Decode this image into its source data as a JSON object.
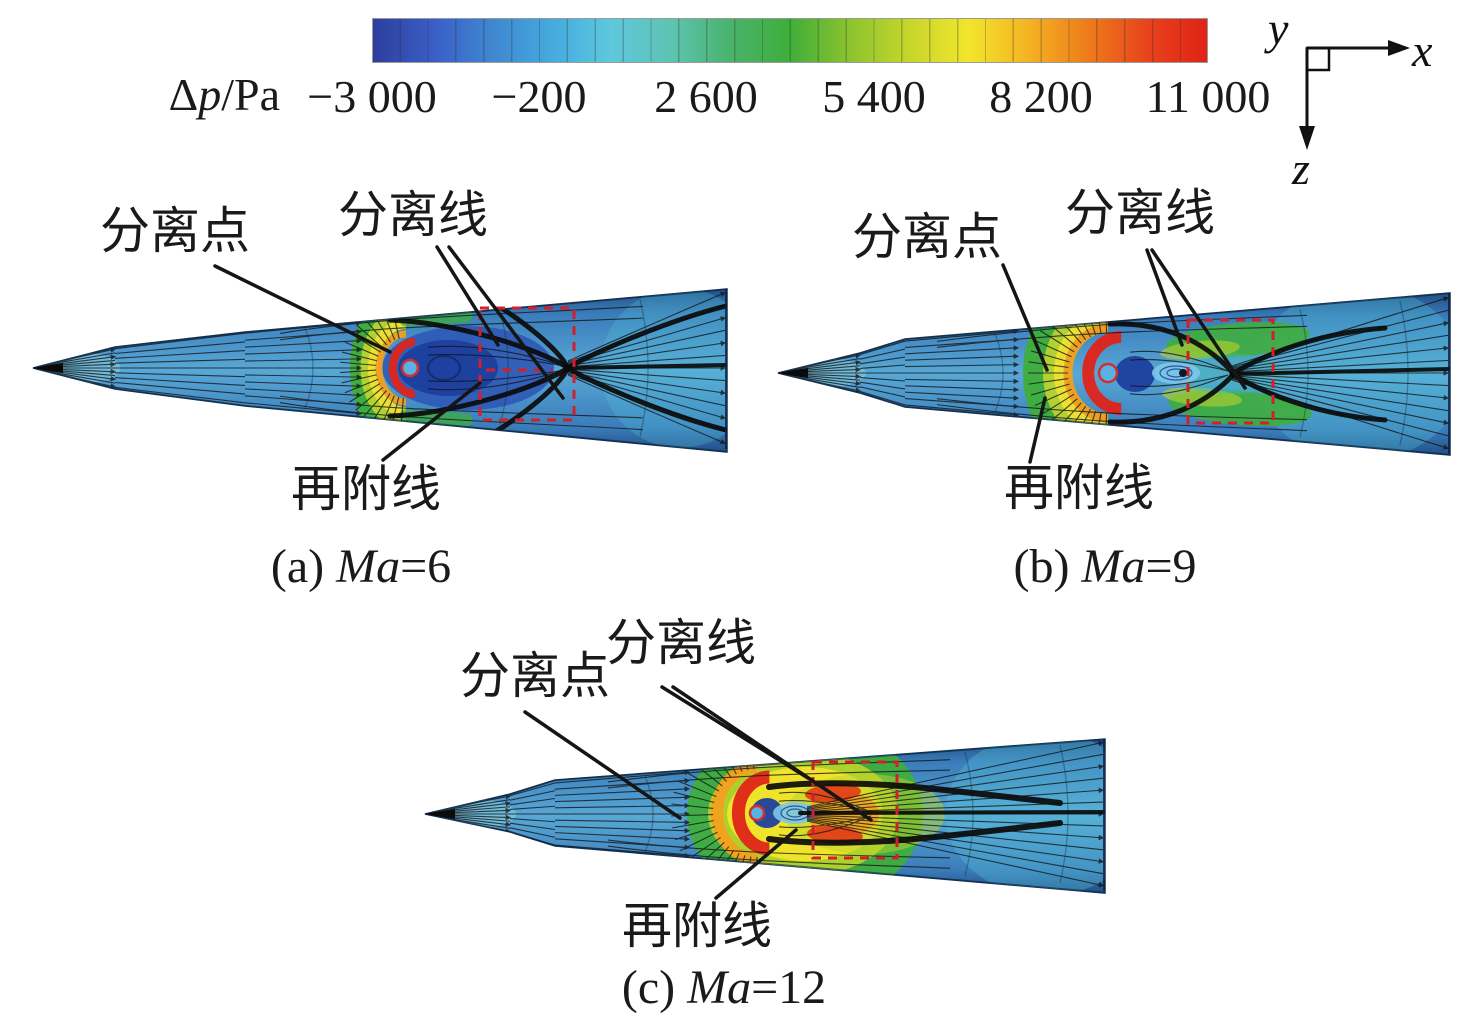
{
  "figure": {
    "palette": {
      "green": "#3fae3a",
      "yellowGreen": "#b9d42a",
      "yellow": "#f2e42c",
      "orange": "#f2a01e",
      "red": "#df2418",
      "redStreak": "#e03a16",
      "wakeNavy": "#1e3f9e",
      "wakeBlue": "#2d55b4",
      "bubbleCyan": "#7cc8e4",
      "teal": "#45b8b8",
      "cyanTint": "#55c4da",
      "noseLight": "#8ed0de",
      "stream": "#141414",
      "thick": "#0b0b0b",
      "dashedBox": "#d0202c",
      "leader": "#151515",
      "edge": "#0d2f55",
      "bodyDark": "#214f86",
      "bodyMid": "#58a8d6"
    },
    "colorbar": {
      "label_delta": "Δ",
      "label_p": "p",
      "label_unit": "/Pa",
      "ticks": [
        "−3 000",
        "−200",
        "2 600",
        "5 400",
        "8 200",
        "11 000"
      ],
      "gradient": [
        "#2d3e9d",
        "#3a5ec6",
        "#3f87d0",
        "#45aade",
        "#5ec8dd",
        "#5dc4b2",
        "#49b36b",
        "#3fae3a",
        "#8cc32e",
        "#c6d62b",
        "#f2e52c",
        "#f4b322",
        "#ee7c1b",
        "#e8431c",
        "#e02318"
      ]
    },
    "axes": {
      "x": "x",
      "y": "y",
      "z": "z"
    },
    "subfigures": [
      {
        "id": "a",
        "caption_index": "(a) ",
        "caption_symbol": "Ma",
        "caption_value": "=6",
        "labels": {
          "separation_point": "分离点",
          "separation_line": "分离线",
          "reattachment_line": "再附线"
        }
      },
      {
        "id": "b",
        "caption_index": "(b) ",
        "caption_symbol": "Ma",
        "caption_value": "=9",
        "labels": {
          "separation_point": "分离点",
          "separation_line": "分离线",
          "reattachment_line": "再附线"
        }
      },
      {
        "id": "c",
        "caption_index": "(c) ",
        "caption_symbol": "Ma",
        "caption_value": "=12",
        "labels": {
          "separation_point": "分离点",
          "separation_line": "分离线",
          "reattachment_line": "再附线"
        }
      }
    ]
  },
  "chart_data": {
    "type": "heatmap",
    "variable": "Δp",
    "unit": "Pa",
    "colorbar": {
      "min": -3000,
      "max": 11000,
      "ticks": [
        -3000,
        -200,
        2600,
        5400,
        8200,
        11000
      ],
      "colors": [
        "#2d3e9d",
        "#3a5ec6",
        "#3f87d0",
        "#45aade",
        "#5ec8dd",
        "#5dc4b2",
        "#49b36b",
        "#3fae3a",
        "#8cc32e",
        "#c6d62b",
        "#f2e52c",
        "#f4b322",
        "#ee7c1b",
        "#e8431c",
        "#e02318"
      ]
    },
    "subplots": [
      {
        "label": "(a)",
        "mach": 6,
        "annotations": [
          "分离点",
          "分离线",
          "再附线"
        ]
      },
      {
        "label": "(b)",
        "mach": 9,
        "annotations": [
          "分离点",
          "分离线",
          "再附线"
        ]
      },
      {
        "label": "(c)",
        "mach": 12,
        "annotations": [
          "分离点",
          "分离线",
          "再附线"
        ]
      }
    ],
    "coordinate_axes": [
      "x",
      "y",
      "z"
    ]
  }
}
